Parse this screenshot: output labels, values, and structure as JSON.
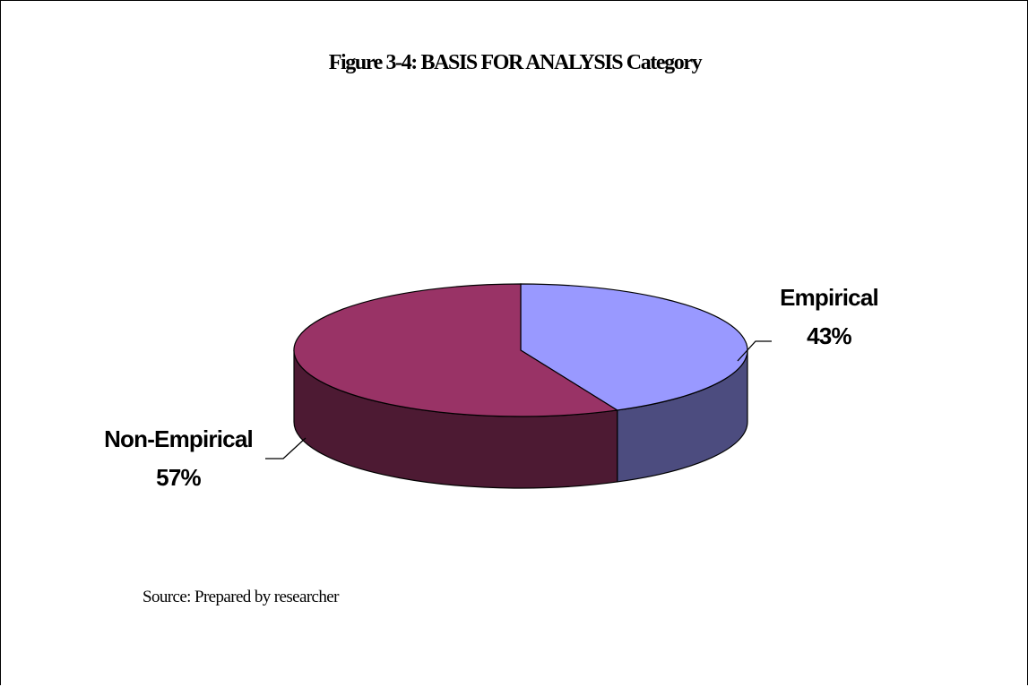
{
  "chart_data": {
    "type": "pie",
    "title": "Figure 3-4: BASIS FOR ANALYSIS Category",
    "style": "3d",
    "slices": [
      {
        "label": "Empirical",
        "value": 43,
        "display": "43%",
        "color": "#9999ff",
        "side_color": "#4c4c7f"
      },
      {
        "label": "Non-Empirical",
        "value": 57,
        "display": "57%",
        "color": "#993366",
        "side_color": "#4d1a33"
      }
    ],
    "note": "Source: Prepared by researcher"
  }
}
